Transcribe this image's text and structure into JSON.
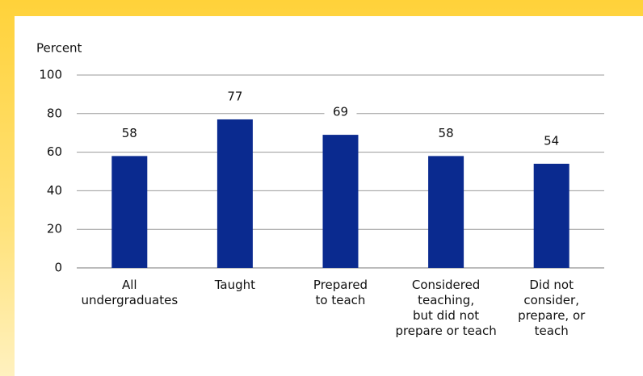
{
  "chart_data": {
    "type": "bar",
    "y_axis_label": "Percent",
    "categories": [
      "All\nundergraduates",
      "Taught",
      "Prepared\nto teach",
      "Considered\nteaching,\nbut did not\nprepare or teach",
      "Did not\nconsider,\nprepare, or\nteach"
    ],
    "values": [
      58,
      77,
      69,
      58,
      54
    ],
    "color": "#0a2a8f",
    "ylim": [
      0,
      100
    ],
    "yticks": [
      0,
      20,
      40,
      60,
      80,
      100
    ],
    "grid": true
  }
}
